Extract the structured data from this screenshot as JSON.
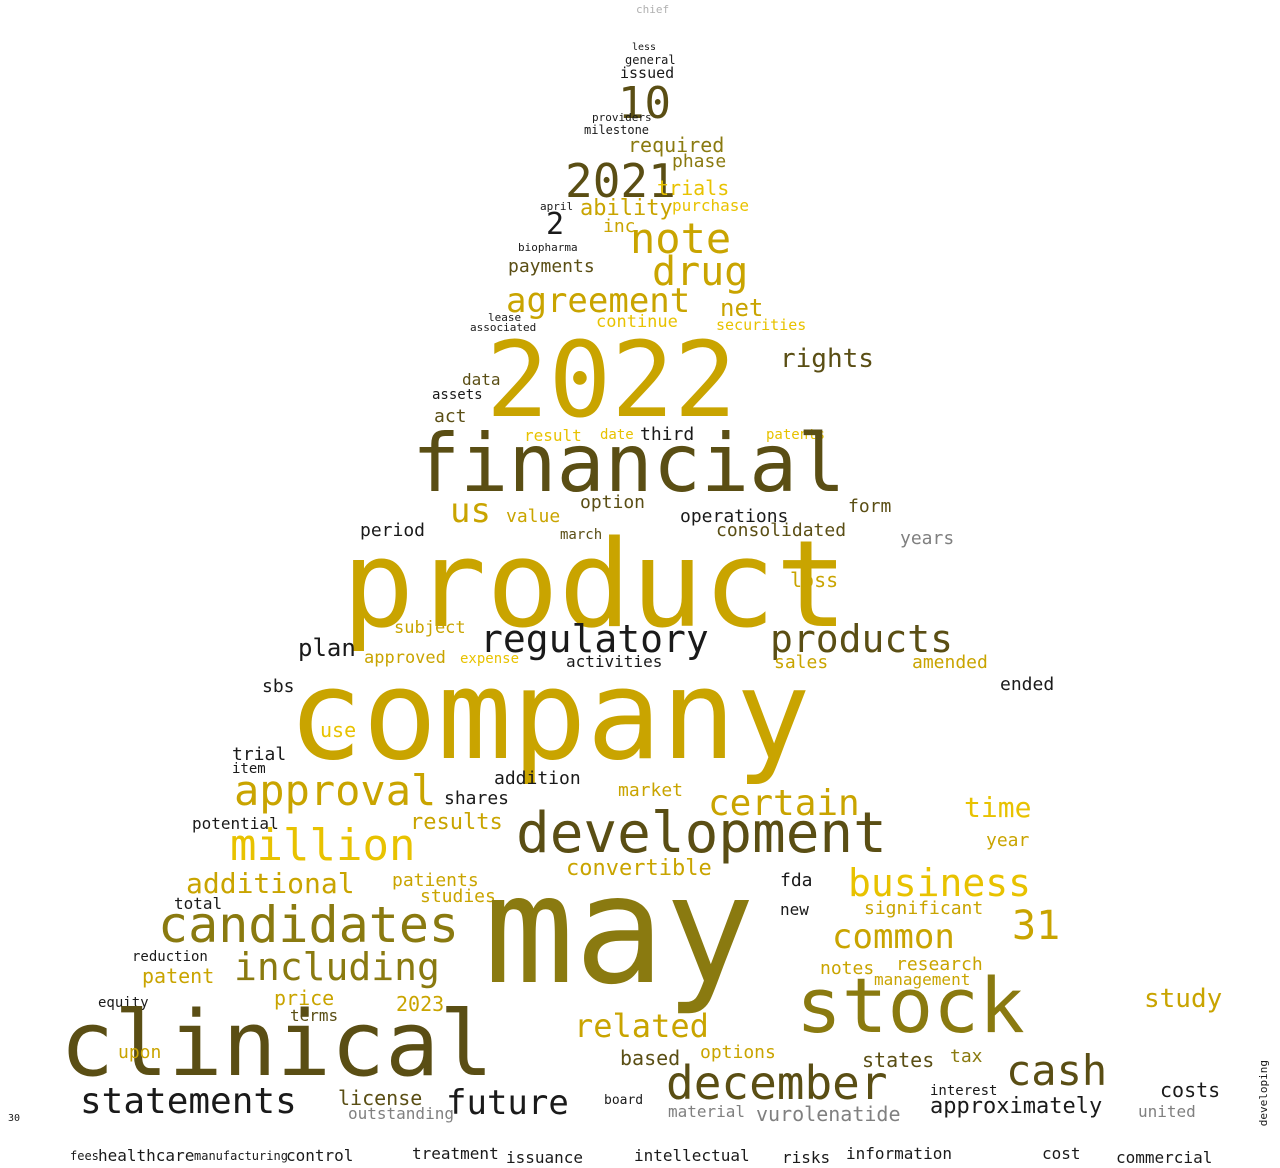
{
  "palette": {
    "gold": "#c9a400",
    "gold_light": "#e8c200",
    "olive": "#8a7a10",
    "dark_olive": "#5a4e14",
    "black": "#1a1a1a",
    "gray": "#808080",
    "light_gray": "#b0b0b0"
  },
  "words": [
    {
      "text": "chief",
      "color": "light_gray"
    },
    {
      "text": "less",
      "color": "black"
    },
    {
      "text": "general",
      "color": "black"
    },
    {
      "text": "issued",
      "color": "black"
    },
    {
      "text": "10",
      "color": "dark_olive"
    },
    {
      "text": "providers",
      "color": "black"
    },
    {
      "text": "milestone",
      "color": "black"
    },
    {
      "text": "required",
      "color": "olive"
    },
    {
      "text": "phase",
      "color": "olive"
    },
    {
      "text": "2021",
      "color": "dark_olive"
    },
    {
      "text": "trials",
      "color": "gold_light"
    },
    {
      "text": "purchase",
      "color": "gold_light"
    },
    {
      "text": "ability",
      "color": "gold"
    },
    {
      "text": "april",
      "color": "black"
    },
    {
      "text": "2",
      "color": "black"
    },
    {
      "text": "inc",
      "color": "gold"
    },
    {
      "text": "note",
      "color": "gold"
    },
    {
      "text": "drug",
      "color": "gold"
    },
    {
      "text": "biopharma",
      "color": "black"
    },
    {
      "text": "payments",
      "color": "dark_olive"
    },
    {
      "text": "agreement",
      "color": "gold"
    },
    {
      "text": "net",
      "color": "gold"
    },
    {
      "text": "continue",
      "color": "gold_light"
    },
    {
      "text": "securities",
      "color": "gold_light"
    },
    {
      "text": "lease",
      "color": "black"
    },
    {
      "text": "associated",
      "color": "black"
    },
    {
      "text": "2022",
      "color": "gold"
    },
    {
      "text": "rights",
      "color": "dark_olive"
    },
    {
      "text": "data",
      "color": "dark_olive"
    },
    {
      "text": "assets",
      "color": "black"
    },
    {
      "text": "act",
      "color": "dark_olive"
    },
    {
      "text": "result",
      "color": "gold_light"
    },
    {
      "text": "date",
      "color": "gold_light"
    },
    {
      "text": "third",
      "color": "black"
    },
    {
      "text": "patents",
      "color": "gold_light"
    },
    {
      "text": "financial",
      "color": "dark_olive"
    },
    {
      "text": "us",
      "color": "gold"
    },
    {
      "text": "option",
      "color": "dark_olive"
    },
    {
      "text": "operations",
      "color": "black"
    },
    {
      "text": "value",
      "color": "gold"
    },
    {
      "text": "form",
      "color": "dark_olive"
    },
    {
      "text": "consolidated",
      "color": "dark_olive"
    },
    {
      "text": "period",
      "color": "black"
    },
    {
      "text": "march",
      "color": "dark_olive"
    },
    {
      "text": "years",
      "color": "gray"
    },
    {
      "text": "product",
      "color": "gold"
    },
    {
      "text": "regulatory",
      "color": "black"
    },
    {
      "text": "products",
      "color": "dark_olive"
    },
    {
      "text": "plan",
      "color": "black"
    },
    {
      "text": "subject",
      "color": "gold"
    },
    {
      "text": "loss",
      "color": "gold"
    },
    {
      "text": "approved",
      "color": "gold"
    },
    {
      "text": "expense",
      "color": "gold_light"
    },
    {
      "text": "activities",
      "color": "black"
    },
    {
      "text": "sales",
      "color": "gold"
    },
    {
      "text": "amended",
      "color": "gold"
    },
    {
      "text": "company",
      "color": "gold"
    },
    {
      "text": "sbs",
      "color": "black"
    },
    {
      "text": "ended",
      "color": "black"
    },
    {
      "text": "use",
      "color": "gold_light"
    },
    {
      "text": "trial",
      "color": "black"
    },
    {
      "text": "item",
      "color": "black"
    },
    {
      "text": "addition",
      "color": "black"
    },
    {
      "text": "shares",
      "color": "black"
    },
    {
      "text": "market",
      "color": "gold"
    },
    {
      "text": "approval",
      "color": "gold"
    },
    {
      "text": "certain",
      "color": "gold"
    },
    {
      "text": "time",
      "color": "gold_light"
    },
    {
      "text": "year",
      "color": "gold"
    },
    {
      "text": "results",
      "color": "gold"
    },
    {
      "text": "potential",
      "color": "black"
    },
    {
      "text": "million",
      "color": "gold_light"
    },
    {
      "text": "development",
      "color": "dark_olive"
    },
    {
      "text": "convertible",
      "color": "gold"
    },
    {
      "text": "fda",
      "color": "black"
    },
    {
      "text": "patients",
      "color": "gold"
    },
    {
      "text": "additional",
      "color": "gold"
    },
    {
      "text": "business",
      "color": "gold_light"
    },
    {
      "text": "studies",
      "color": "gold"
    },
    {
      "text": "significant",
      "color": "gold"
    },
    {
      "text": "total",
      "color": "black"
    },
    {
      "text": "candidates",
      "color": "olive"
    },
    {
      "text": "new",
      "color": "black"
    },
    {
      "text": "common",
      "color": "gold"
    },
    {
      "text": "31",
      "color": "gold"
    },
    {
      "text": "including",
      "color": "olive"
    },
    {
      "text": "may",
      "color": "olive"
    },
    {
      "text": "research",
      "color": "gold"
    },
    {
      "text": "notes",
      "color": "gold"
    },
    {
      "text": "reduction",
      "color": "black"
    },
    {
      "text": "patent",
      "color": "gold"
    },
    {
      "text": "management",
      "color": "gold"
    },
    {
      "text": "price",
      "color": "gold"
    },
    {
      "text": "2023",
      "color": "gold"
    },
    {
      "text": "equity",
      "color": "black"
    },
    {
      "text": "terms",
      "color": "dark_olive"
    },
    {
      "text": "stock",
      "color": "olive"
    },
    {
      "text": "clinical",
      "color": "dark_olive"
    },
    {
      "text": "related",
      "color": "gold"
    },
    {
      "text": "upon",
      "color": "gold"
    },
    {
      "text": "options",
      "color": "gold"
    },
    {
      "text": "based",
      "color": "dark_olive"
    },
    {
      "text": "states",
      "color": "dark_olive"
    },
    {
      "text": "tax",
      "color": "olive"
    },
    {
      "text": "december",
      "color": "dark_olive"
    },
    {
      "text": "cash",
      "color": "dark_olive"
    },
    {
      "text": "study",
      "color": "gold"
    },
    {
      "text": "statements",
      "color": "black"
    },
    {
      "text": "license",
      "color": "dark_olive"
    },
    {
      "text": "future",
      "color": "black"
    },
    {
      "text": "outstanding",
      "color": "gray"
    },
    {
      "text": "material",
      "color": "gray"
    },
    {
      "text": "vurolenatide",
      "color": "gray"
    },
    {
      "text": "approximately",
      "color": "black"
    },
    {
      "text": "interest",
      "color": "black"
    },
    {
      "text": "costs",
      "color": "black"
    },
    {
      "text": "united",
      "color": "gray"
    },
    {
      "text": "healthcare",
      "color": "black"
    },
    {
      "text": "manufacturing",
      "color": "black"
    },
    {
      "text": "control",
      "color": "black"
    },
    {
      "text": "treatment",
      "color": "black"
    },
    {
      "text": "issuance",
      "color": "black"
    },
    {
      "text": "intellectual",
      "color": "black"
    },
    {
      "text": "risks",
      "color": "black"
    },
    {
      "text": "information",
      "color": "black"
    },
    {
      "text": "cost",
      "color": "black"
    },
    {
      "text": "commercial",
      "color": "black"
    },
    {
      "text": "board",
      "color": "black"
    },
    {
      "text": "fees",
      "color": "black"
    },
    {
      "text": "developing",
      "color": "black"
    },
    {
      "text": "30",
      "color": "black"
    }
  ]
}
